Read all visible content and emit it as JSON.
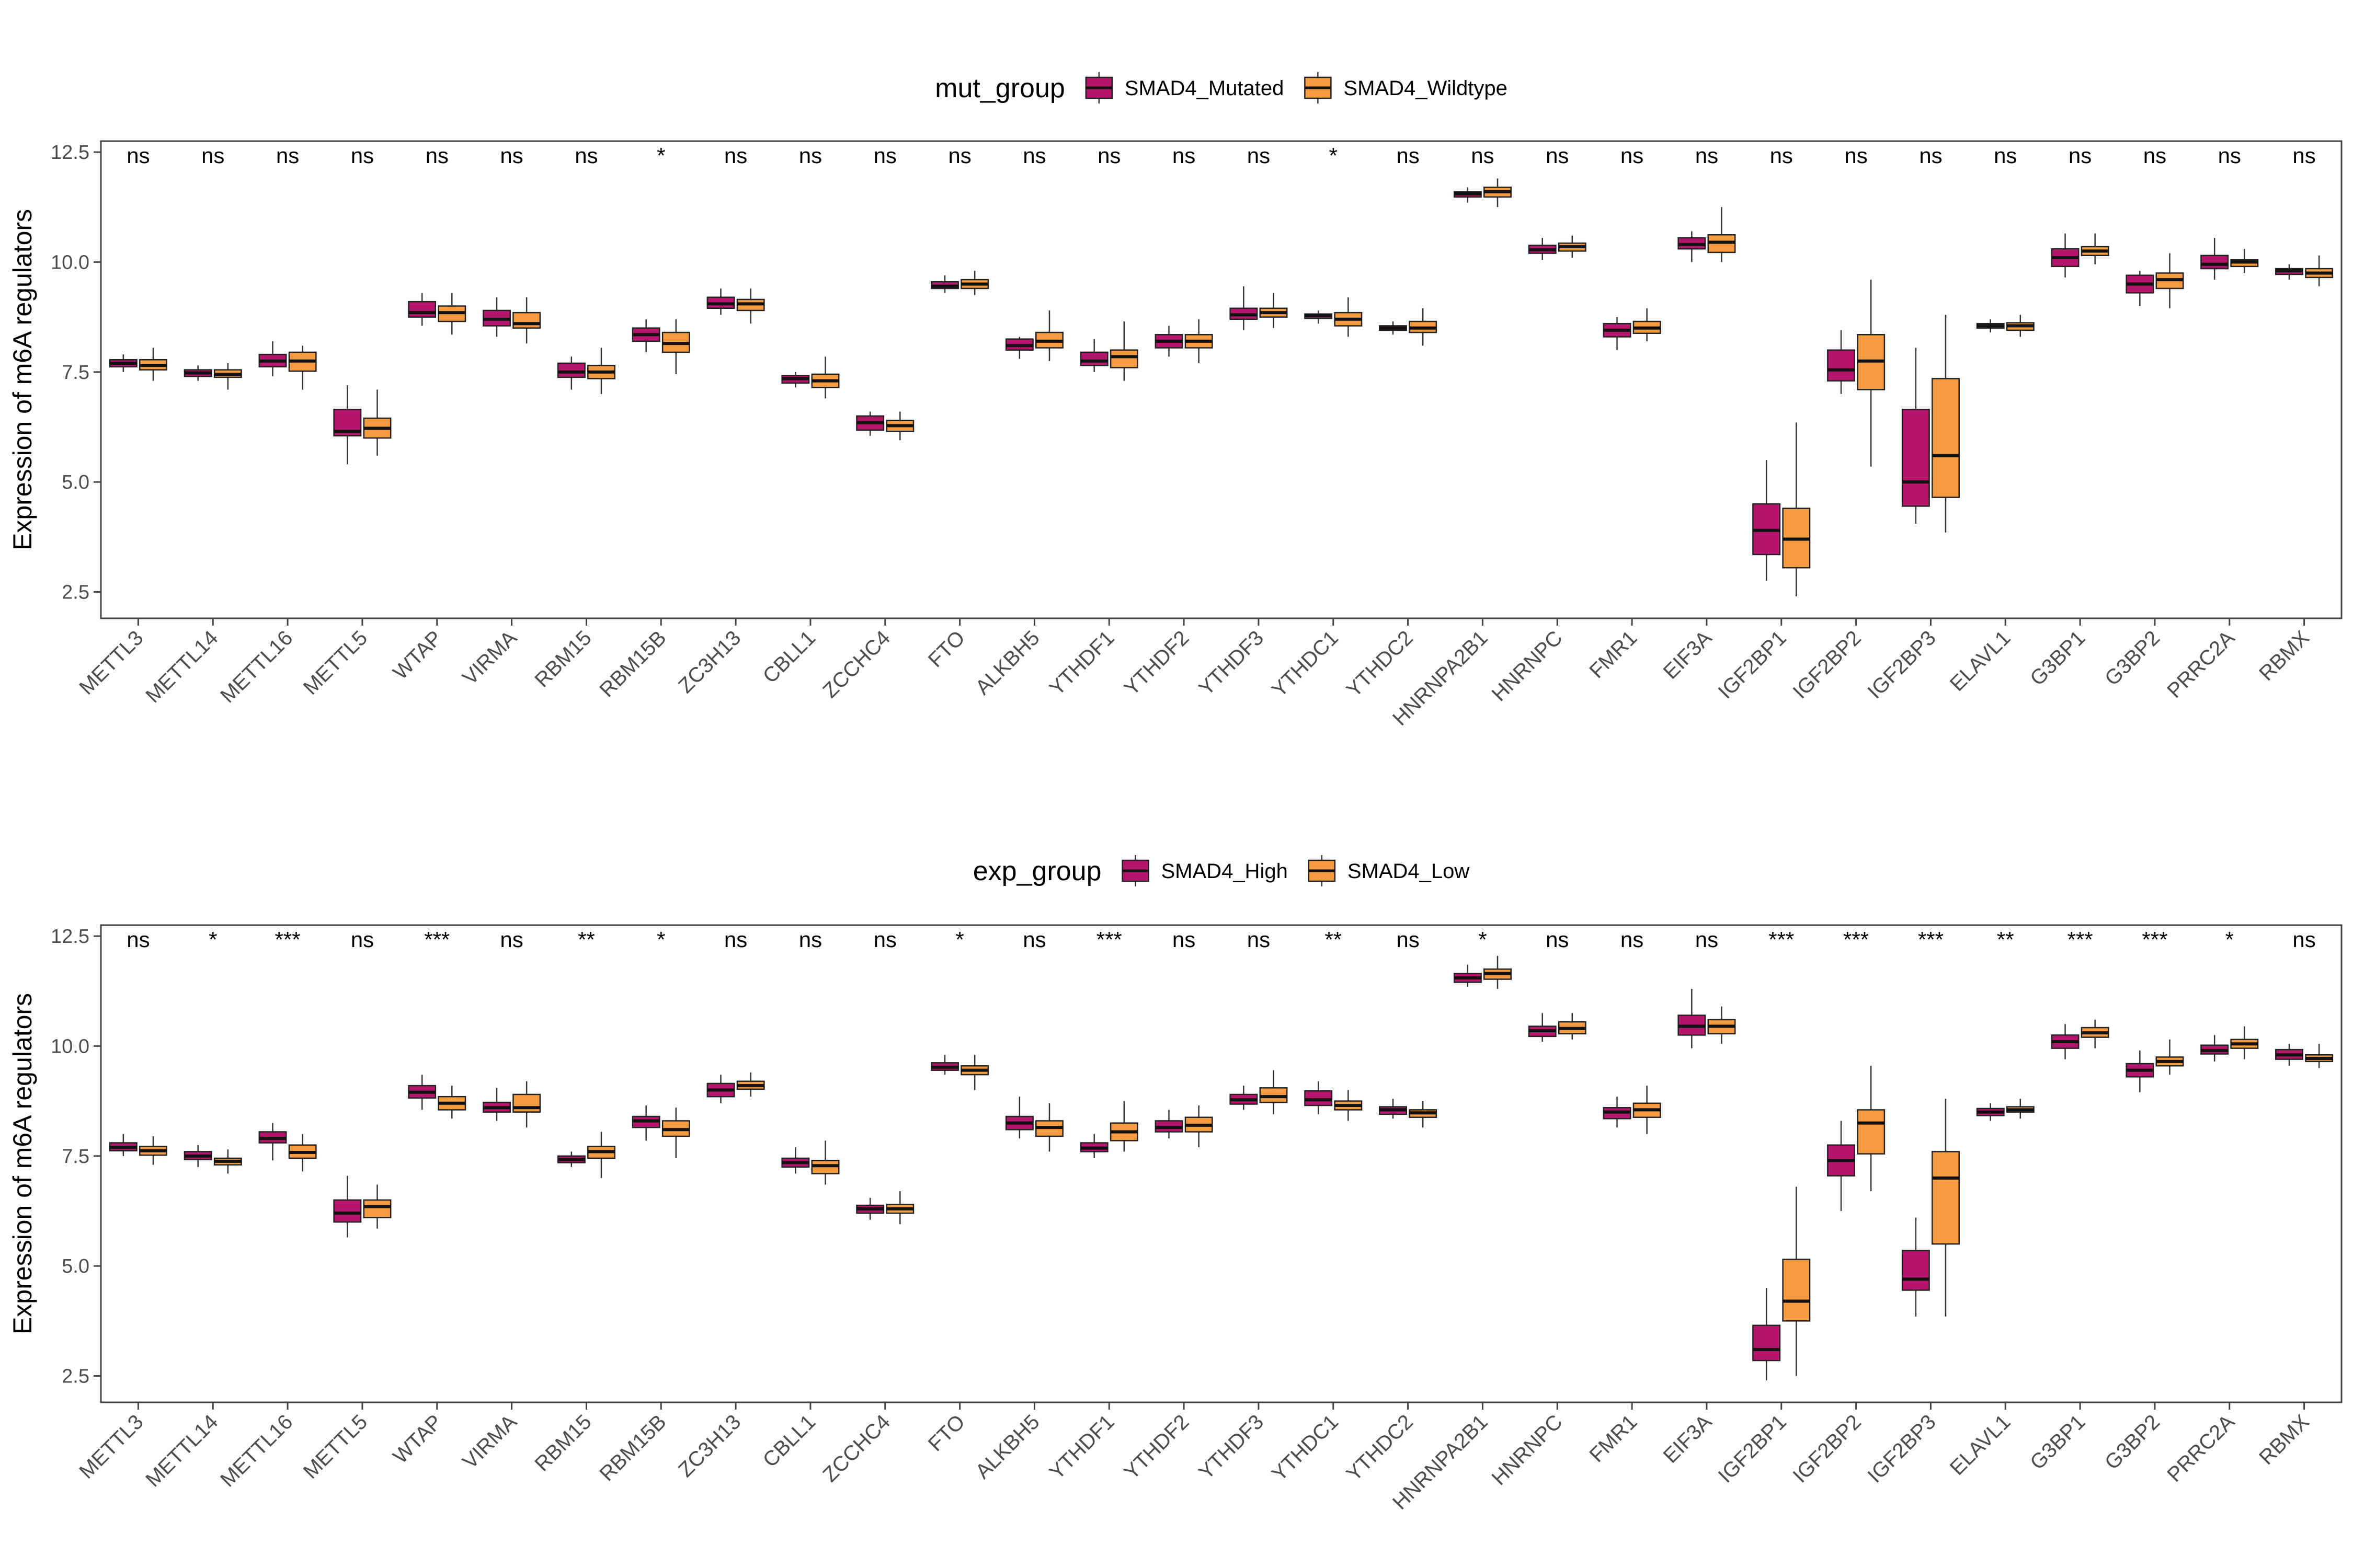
{
  "chart_data": [
    {
      "type": "boxplot",
      "legend": {
        "title": "mut_group",
        "entries": [
          {
            "name": "SMAD4_Mutated",
            "color": "#B5166B"
          },
          {
            "name": "SMAD4_Wildtype",
            "color": "#F59B42"
          }
        ],
        "placement": "top"
      },
      "ylabel": "Expression of m6A regulators",
      "xlabel": "",
      "ylim": [
        1.9,
        12.75
      ],
      "yticks": [
        "2.5",
        "5.0",
        "7.5",
        "10.0",
        "12.5"
      ],
      "categories": [
        "METTL3",
        "METTL14",
        "METTL16",
        "METTL5",
        "WTAP",
        "VIRMA",
        "RBM15",
        "RBM15B",
        "ZC3H13",
        "CBLL1",
        "ZCCHC4",
        "FTO",
        "ALKBH5",
        "YTHDF1",
        "YTHDF2",
        "YTHDF3",
        "YTHDC1",
        "YTHDC2",
        "HNRNPA2B1",
        "HNRNPC",
        "FMR1",
        "EIF3A",
        "IGF2BP1",
        "IGF2BP2",
        "IGF2BP3",
        "ELAVL1",
        "G3BP1",
        "G3BP2",
        "PRRC2A",
        "RBMX"
      ],
      "significance": [
        "ns",
        "ns",
        "ns",
        "ns",
        "ns",
        "ns",
        "ns",
        "*",
        "ns",
        "ns",
        "ns",
        "ns",
        "ns",
        "ns",
        "ns",
        "ns",
        "*",
        "ns",
        "ns",
        "ns",
        "ns",
        "ns",
        "ns",
        "ns",
        "ns",
        "ns",
        "ns",
        "ns",
        "ns",
        "ns"
      ],
      "series": [
        {
          "name": "SMAD4_Mutated",
          "boxes": [
            [
              7.5,
              7.62,
              7.7,
              7.78,
              7.9
            ],
            [
              7.3,
              7.4,
              7.48,
              7.55,
              7.65
            ],
            [
              7.4,
              7.62,
              7.75,
              7.9,
              8.2
            ],
            [
              5.4,
              6.05,
              6.15,
              6.65,
              7.2
            ],
            [
              8.55,
              8.75,
              8.85,
              9.1,
              9.3
            ],
            [
              8.3,
              8.55,
              8.7,
              8.9,
              9.2
            ],
            [
              7.1,
              7.38,
              7.5,
              7.7,
              7.85
            ],
            [
              7.95,
              8.2,
              8.35,
              8.5,
              8.7
            ],
            [
              8.8,
              8.95,
              9.05,
              9.2,
              9.4
            ],
            [
              7.15,
              7.25,
              7.35,
              7.42,
              7.5
            ],
            [
              6.05,
              6.18,
              6.35,
              6.5,
              6.6
            ],
            [
              9.3,
              9.4,
              9.45,
              9.55,
              9.7
            ],
            [
              7.8,
              8.0,
              8.1,
              8.25,
              8.3
            ],
            [
              7.5,
              7.65,
              7.75,
              7.95,
              8.25
            ],
            [
              7.85,
              8.05,
              8.2,
              8.35,
              8.55
            ],
            [
              8.45,
              8.7,
              8.8,
              8.95,
              9.45
            ],
            [
              8.6,
              8.72,
              8.78,
              8.82,
              8.9
            ],
            [
              8.35,
              8.45,
              8.5,
              8.55,
              8.65
            ],
            [
              11.35,
              11.48,
              11.55,
              11.6,
              11.7
            ],
            [
              10.05,
              10.2,
              10.28,
              10.38,
              10.55
            ],
            [
              8.0,
              8.3,
              8.45,
              8.6,
              8.75
            ],
            [
              10.0,
              10.3,
              10.4,
              10.55,
              10.7
            ],
            [
              2.75,
              3.35,
              3.9,
              4.5,
              5.5
            ],
            [
              7.0,
              7.3,
              7.55,
              8.0,
              8.45
            ],
            [
              4.05,
              4.45,
              5.0,
              6.65,
              8.05
            ],
            [
              8.4,
              8.5,
              8.55,
              8.6,
              8.7
            ],
            [
              9.65,
              9.9,
              10.1,
              10.3,
              10.65
            ],
            [
              9.0,
              9.3,
              9.5,
              9.7,
              9.8
            ],
            [
              9.6,
              9.85,
              9.95,
              10.15,
              10.55
            ],
            [
              9.6,
              9.72,
              9.8,
              9.85,
              9.95
            ]
          ]
        },
        {
          "name": "SMAD4_Wildtype",
          "boxes": [
            [
              7.3,
              7.55,
              7.65,
              7.78,
              8.05
            ],
            [
              7.1,
              7.38,
              7.45,
              7.55,
              7.7
            ],
            [
              7.1,
              7.52,
              7.75,
              7.95,
              8.1
            ],
            [
              5.6,
              6.0,
              6.22,
              6.45,
              7.1
            ],
            [
              8.35,
              8.65,
              8.85,
              9.0,
              9.3
            ],
            [
              8.15,
              8.5,
              8.6,
              8.85,
              9.2
            ],
            [
              7.0,
              7.35,
              7.5,
              7.65,
              8.05
            ],
            [
              7.45,
              7.95,
              8.15,
              8.4,
              8.7
            ],
            [
              8.6,
              8.9,
              9.05,
              9.15,
              9.4
            ],
            [
              6.9,
              7.15,
              7.3,
              7.45,
              7.85
            ],
            [
              5.95,
              6.15,
              6.28,
              6.4,
              6.6
            ],
            [
              9.25,
              9.4,
              9.5,
              9.6,
              9.8
            ],
            [
              7.75,
              8.05,
              8.2,
              8.4,
              8.9
            ],
            [
              7.3,
              7.6,
              7.85,
              8.0,
              8.65
            ],
            [
              7.7,
              8.05,
              8.2,
              8.35,
              8.7
            ],
            [
              8.5,
              8.75,
              8.85,
              8.95,
              9.3
            ],
            [
              8.3,
              8.55,
              8.7,
              8.85,
              9.2
            ],
            [
              8.1,
              8.4,
              8.5,
              8.65,
              8.95
            ],
            [
              11.25,
              11.48,
              11.6,
              11.7,
              11.9
            ],
            [
              10.1,
              10.25,
              10.35,
              10.43,
              10.6
            ],
            [
              8.2,
              8.38,
              8.5,
              8.65,
              8.95
            ],
            [
              10.0,
              10.22,
              10.45,
              10.62,
              11.25
            ],
            [
              2.4,
              3.05,
              3.7,
              4.4,
              6.35
            ],
            [
              5.35,
              7.1,
              7.75,
              8.35,
              9.6
            ],
            [
              3.85,
              4.65,
              5.6,
              7.35,
              8.8
            ],
            [
              8.3,
              8.45,
              8.55,
              8.62,
              8.8
            ],
            [
              9.95,
              10.15,
              10.25,
              10.35,
              10.65
            ],
            [
              8.95,
              9.4,
              9.6,
              9.75,
              10.2
            ],
            [
              9.75,
              9.9,
              10.0,
              10.05,
              10.3
            ],
            [
              9.45,
              9.65,
              9.75,
              9.85,
              10.15
            ]
          ]
        }
      ]
    },
    {
      "type": "boxplot",
      "legend": {
        "title": "exp_group",
        "entries": [
          {
            "name": "SMAD4_High",
            "color": "#B5166B"
          },
          {
            "name": "SMAD4_Low",
            "color": "#F59B42"
          }
        ],
        "placement": "top"
      },
      "ylabel": "Expression of m6A regulators",
      "xlabel": "",
      "ylim": [
        1.9,
        12.75
      ],
      "yticks": [
        "2.5",
        "5.0",
        "7.5",
        "10.0",
        "12.5"
      ],
      "categories": [
        "METTL3",
        "METTL14",
        "METTL16",
        "METTL5",
        "WTAP",
        "VIRMA",
        "RBM15",
        "RBM15B",
        "ZC3H13",
        "CBLL1",
        "ZCCHC4",
        "FTO",
        "ALKBH5",
        "YTHDF1",
        "YTHDF2",
        "YTHDF3",
        "YTHDC1",
        "YTHDC2",
        "HNRNPA2B1",
        "HNRNPC",
        "FMR1",
        "EIF3A",
        "IGF2BP1",
        "IGF2BP2",
        "IGF2BP3",
        "ELAVL1",
        "G3BP1",
        "G3BP2",
        "PRRC2A",
        "RBMX"
      ],
      "significance": [
        "ns",
        "*",
        "***",
        "ns",
        "***",
        "ns",
        "**",
        "*",
        "ns",
        "ns",
        "ns",
        "*",
        "ns",
        "***",
        "ns",
        "ns",
        "**",
        "ns",
        "*",
        "ns",
        "ns",
        "ns",
        "***",
        "***",
        "***",
        "**",
        "***",
        "***",
        "*",
        "ns"
      ],
      "series": [
        {
          "name": "SMAD4_High",
          "boxes": [
            [
              7.5,
              7.62,
              7.7,
              7.8,
              8.0
            ],
            [
              7.25,
              7.42,
              7.5,
              7.6,
              7.75
            ],
            [
              7.4,
              7.8,
              7.9,
              8.05,
              8.25
            ],
            [
              5.65,
              6.0,
              6.2,
              6.5,
              7.05
            ],
            [
              8.55,
              8.82,
              8.95,
              9.1,
              9.35
            ],
            [
              8.3,
              8.5,
              8.6,
              8.72,
              9.05
            ],
            [
              7.25,
              7.35,
              7.42,
              7.5,
              7.6
            ],
            [
              7.85,
              8.15,
              8.3,
              8.4,
              8.65
            ],
            [
              8.7,
              8.85,
              9.0,
              9.15,
              9.35
            ],
            [
              7.1,
              7.25,
              7.35,
              7.45,
              7.7
            ],
            [
              6.05,
              6.2,
              6.3,
              6.38,
              6.55
            ],
            [
              9.35,
              9.45,
              9.52,
              9.62,
              9.8
            ],
            [
              7.9,
              8.1,
              8.25,
              8.4,
              8.85
            ],
            [
              7.45,
              7.6,
              7.68,
              7.8,
              8.0
            ],
            [
              7.9,
              8.05,
              8.15,
              8.3,
              8.55
            ],
            [
              8.55,
              8.68,
              8.78,
              8.9,
              9.1
            ],
            [
              8.45,
              8.65,
              8.78,
              8.98,
              9.2
            ],
            [
              8.35,
              8.45,
              8.55,
              8.62,
              8.8
            ],
            [
              11.35,
              11.45,
              11.55,
              11.65,
              11.85
            ],
            [
              10.1,
              10.22,
              10.35,
              10.45,
              10.75
            ],
            [
              8.15,
              8.35,
              8.5,
              8.6,
              8.85
            ],
            [
              9.95,
              10.25,
              10.45,
              10.7,
              11.3
            ],
            [
              2.4,
              2.85,
              3.1,
              3.65,
              4.5
            ],
            [
              6.25,
              7.05,
              7.4,
              7.75,
              8.3
            ],
            [
              3.85,
              4.45,
              4.7,
              5.35,
              6.1
            ],
            [
              8.3,
              8.42,
              8.5,
              8.58,
              8.7
            ],
            [
              9.7,
              9.95,
              10.1,
              10.25,
              10.5
            ],
            [
              8.95,
              9.3,
              9.45,
              9.6,
              9.9
            ],
            [
              9.65,
              9.82,
              9.9,
              10.02,
              10.25
            ],
            [
              9.55,
              9.7,
              9.8,
              9.92,
              10.05
            ]
          ]
        },
        {
          "name": "SMAD4_Low",
          "boxes": [
            [
              7.3,
              7.52,
              7.62,
              7.72,
              7.95
            ],
            [
              7.1,
              7.3,
              7.38,
              7.45,
              7.65
            ],
            [
              7.15,
              7.45,
              7.58,
              7.75,
              8.0
            ],
            [
              5.85,
              6.1,
              6.35,
              6.5,
              6.85
            ],
            [
              8.35,
              8.55,
              8.7,
              8.85,
              9.1
            ],
            [
              8.15,
              8.5,
              8.6,
              8.9,
              9.2
            ],
            [
              7.0,
              7.45,
              7.6,
              7.72,
              8.05
            ],
            [
              7.45,
              7.95,
              8.1,
              8.3,
              8.6
            ],
            [
              8.85,
              9.02,
              9.1,
              9.2,
              9.4
            ],
            [
              6.85,
              7.1,
              7.28,
              7.4,
              7.85
            ],
            [
              5.95,
              6.2,
              6.3,
              6.4,
              6.7
            ],
            [
              9.0,
              9.35,
              9.45,
              9.55,
              9.8
            ],
            [
              7.6,
              7.95,
              8.15,
              8.3,
              8.7
            ],
            [
              7.6,
              7.85,
              8.05,
              8.25,
              8.75
            ],
            [
              7.7,
              8.05,
              8.2,
              8.38,
              8.65
            ],
            [
              8.45,
              8.72,
              8.85,
              9.05,
              9.45
            ],
            [
              8.3,
              8.55,
              8.65,
              8.75,
              9.0
            ],
            [
              8.15,
              8.38,
              8.48,
              8.55,
              8.75
            ],
            [
              11.3,
              11.52,
              11.65,
              11.75,
              12.05
            ],
            [
              10.15,
              10.28,
              10.4,
              10.55,
              10.75
            ],
            [
              8.0,
              8.38,
              8.55,
              8.7,
              9.1
            ],
            [
              10.05,
              10.28,
              10.45,
              10.6,
              10.9
            ],
            [
              2.5,
              3.75,
              4.2,
              5.15,
              6.8
            ],
            [
              6.7,
              7.55,
              8.25,
              8.55,
              9.55
            ],
            [
              3.85,
              5.5,
              7.0,
              7.6,
              8.8
            ],
            [
              8.35,
              8.5,
              8.55,
              8.62,
              8.8
            ],
            [
              9.95,
              10.2,
              10.3,
              10.42,
              10.6
            ],
            [
              9.35,
              9.55,
              9.65,
              9.75,
              10.15
            ],
            [
              9.7,
              9.95,
              10.05,
              10.15,
              10.45
            ],
            [
              9.5,
              9.65,
              9.72,
              9.8,
              10.05
            ]
          ]
        }
      ]
    }
  ]
}
